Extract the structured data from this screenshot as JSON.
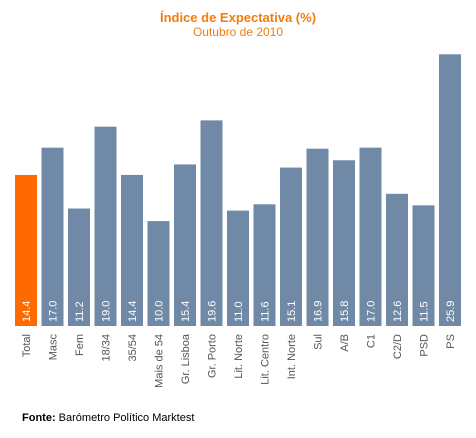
{
  "chart_data": {
    "type": "bar",
    "title": "Índice de Expectativa (%)",
    "subtitle": "Outubro de 2010",
    "categories": [
      "Total",
      "Masc",
      "Fem",
      "18/34",
      "35/54",
      "Mais de 54",
      "Gr. Lisboa",
      "Gr. Porto",
      "Lit. Norte",
      "Lit. Centro",
      "Int. Norte",
      "Sul",
      "A/B",
      "C1",
      "C2/D",
      "PSD",
      "PS"
    ],
    "values": [
      14.4,
      17.0,
      11.2,
      19.0,
      14.4,
      10.0,
      15.4,
      19.6,
      11.0,
      11.6,
      15.1,
      16.9,
      15.8,
      17.0,
      12.6,
      11.5,
      25.9
    ],
    "value_labels": [
      "14.4",
      "17.0",
      "11.2",
      "19.0",
      "14.4",
      "10.0",
      "15.4",
      "19.6",
      "11.0",
      "11.6",
      "15.1",
      "16.9",
      "15.8",
      "17.0",
      "12.6",
      "11.5",
      "25.9"
    ],
    "highlight_index": 0,
    "colors": {
      "bar": "#6f89a6",
      "highlight": "#ff6a00",
      "title": "#f07d10"
    },
    "ylim": [
      0,
      26.5
    ],
    "grid": false,
    "xlabel": "",
    "ylabel": ""
  },
  "source": {
    "label": "Fonte:",
    "text": " Barómetro Político Marktest"
  }
}
